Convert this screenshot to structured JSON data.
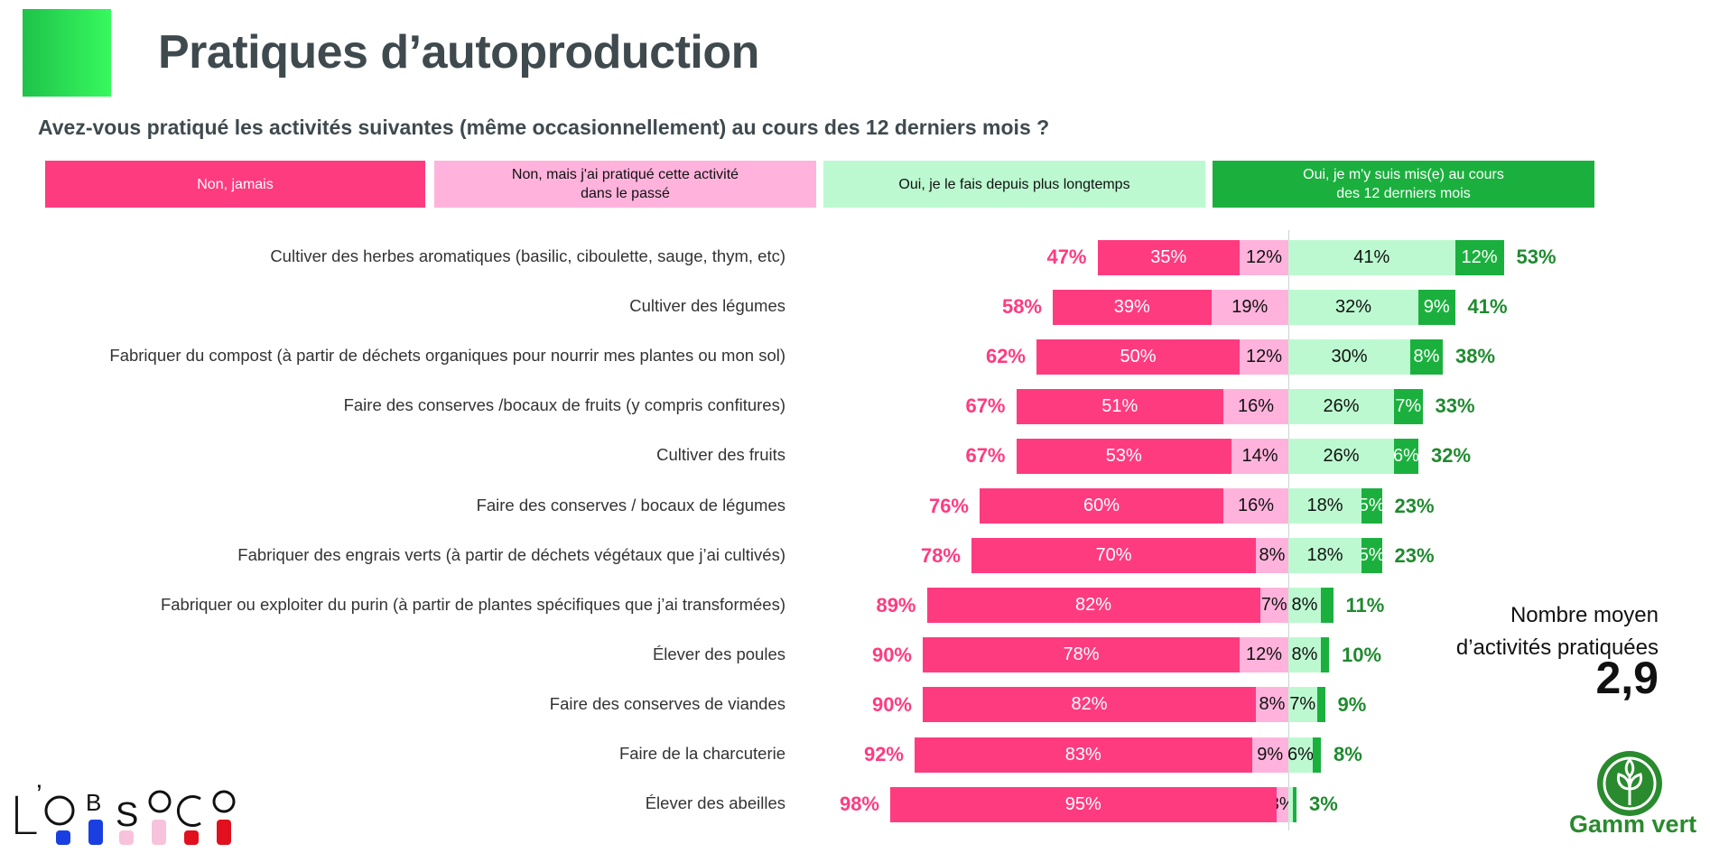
{
  "header": {
    "title": "Pratiques d’autoproduction",
    "question": "Avez-vous pratiqué les activités suivantes (même occasionnellement) au cours des 12 derniers mois ?"
  },
  "chart_data": {
    "type": "bar",
    "orientation": "horizontal-diverging-stacked",
    "series": [
      {
        "name": "Non, jamais",
        "color": "#ff3b80"
      },
      {
        "name": "Non, mais j'ai pratiqué cette activité dans le passé",
        "color": "#ffb3dc"
      },
      {
        "name": "Oui, je le fais depuis plus longtemps",
        "color": "#bcf9d0"
      },
      {
        "name": "Oui, je m'y suis mis(e) au cours des 12 derniers mois",
        "color": "#1bb03e"
      }
    ],
    "legend_placement": "top",
    "rows": [
      {
        "label": "Cultiver des herbes aromatiques (basilic, ciboulette, sauge, thym, etc)",
        "values": [
          35,
          12,
          41,
          12
        ],
        "labels": [
          "35%",
          "12%",
          "41%",
          "12%"
        ],
        "total_no": "47%",
        "total_yes": "53%"
      },
      {
        "label": "Cultiver des légumes",
        "values": [
          39,
          19,
          32,
          9
        ],
        "labels": [
          "39%",
          "19%",
          "32%",
          "9%"
        ],
        "total_no": "58%",
        "total_yes": "41%"
      },
      {
        "label": "Fabriquer du compost (à partir de déchets organiques pour nourrir mes plantes ou mon sol)",
        "values": [
          50,
          12,
          30,
          8
        ],
        "labels": [
          "50%",
          "12%",
          "30%",
          "8%"
        ],
        "total_no": "62%",
        "total_yes": "38%"
      },
      {
        "label": "Faire des conserves /bocaux de fruits (y compris confitures)",
        "values": [
          51,
          16,
          26,
          7
        ],
        "labels": [
          "51%",
          "16%",
          "26%",
          "7%"
        ],
        "total_no": "67%",
        "total_yes": "33%"
      },
      {
        "label": "Cultiver des fruits",
        "values": [
          53,
          14,
          26,
          6
        ],
        "labels": [
          "53%",
          "14%",
          "26%",
          "6%"
        ],
        "total_no": "67%",
        "total_yes": "32%"
      },
      {
        "label": "Faire des conserves / bocaux de légumes",
        "values": [
          60,
          16,
          18,
          5
        ],
        "labels": [
          "60%",
          "16%",
          "18%",
          "5%"
        ],
        "total_no": "76%",
        "total_yes": "23%"
      },
      {
        "label": "Fabriquer des engrais verts (à partir de déchets végétaux que j’ai cultivés)",
        "values": [
          70,
          8,
          18,
          5
        ],
        "labels": [
          "70%",
          "8%",
          "18%",
          "5%"
        ],
        "total_no": "78%",
        "total_yes": "23%"
      },
      {
        "label": "Fabriquer ou exploiter du purin (à partir de plantes spécifiques que j’ai transformées)",
        "values": [
          82,
          7,
          8,
          3
        ],
        "labels": [
          "82%",
          "7%",
          "8%",
          ""
        ],
        "total_no": "89%",
        "total_yes": "11%"
      },
      {
        "label": "Élever des poules",
        "values": [
          78,
          12,
          8,
          2
        ],
        "labels": [
          "78%",
          "12%",
          "8%",
          ""
        ],
        "total_no": "90%",
        "total_yes": "10%"
      },
      {
        "label": "Faire des conserves de viandes",
        "values": [
          82,
          8,
          7,
          2
        ],
        "labels": [
          "82%",
          "8%",
          "7%",
          ""
        ],
        "total_no": "90%",
        "total_yes": "9%"
      },
      {
        "label": "Faire de la charcuterie",
        "values": [
          83,
          9,
          6,
          2
        ],
        "labels": [
          "83%",
          "9%",
          "6%",
          ""
        ],
        "total_no": "92%",
        "total_yes": "8%"
      },
      {
        "label": "Élever des abeilles",
        "values": [
          95,
          3,
          1,
          1
        ],
        "labels": [
          "95%",
          "3%",
          "",
          ""
        ],
        "total_no": "98%",
        "total_yes": "3%"
      }
    ]
  },
  "average": {
    "label_line1": "Nombre moyen",
    "label_line2": "d’activités pratiquées",
    "value": "2,9"
  },
  "logos": {
    "left": "L’OBSOCO",
    "right": "Gamm vert"
  },
  "colors": {
    "title": "#3f4a4f",
    "no_total": "#ff3b80",
    "yes_total": "#1f8a2f"
  }
}
